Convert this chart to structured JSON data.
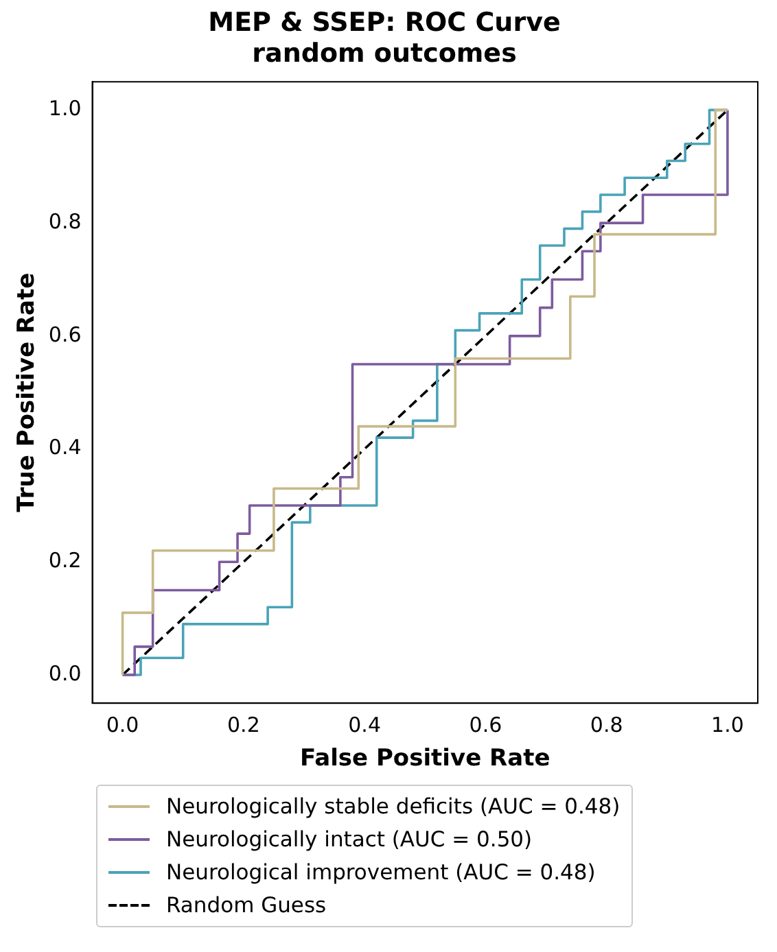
{
  "chart_data": {
    "type": "line",
    "title": [
      "MEP & SSEP: ROC Curve",
      "random outcomes"
    ],
    "xlabel": "False Positive Rate",
    "ylabel": "True Positive Rate",
    "xlim": [
      -0.05,
      1.05
    ],
    "ylim": [
      -0.05,
      1.05
    ],
    "xticks": [
      {
        "value": 0,
        "label": "0.0"
      },
      0.2,
      0.4,
      0.6,
      0.8,
      {
        "value": 1,
        "label": "1.0"
      }
    ],
    "yticks": [
      {
        "value": 0,
        "label": "0.0"
      },
      0.2,
      0.4,
      0.6,
      0.8,
      {
        "value": 1,
        "label": "1.0"
      }
    ],
    "grid": false,
    "legend": "bottom",
    "marker": "none",
    "series": [
      {
        "name": "Neurologically stable deficits (AUC = 0.48)",
        "color": "#c8b98a",
        "line_style": "solid",
        "x": [
          0,
          0,
          0.05,
          0.05,
          0.25,
          0.25,
          0.39,
          0.39,
          0.55,
          0.55,
          0.74,
          0.74,
          0.78,
          0.78,
          0.98,
          0.98,
          1
        ],
        "values": [
          0,
          0.11,
          0.11,
          0.22,
          0.22,
          0.33,
          0.33,
          0.44,
          0.44,
          0.56,
          0.56,
          0.67,
          0.67,
          0.78,
          0.78,
          1,
          1
        ]
      },
      {
        "name": "Neurologically intact (AUC = 0.50)",
        "color": "#7d5b9e",
        "line_style": "solid",
        "x": [
          0,
          0.02,
          0.02,
          0.05,
          0.05,
          0.16,
          0.16,
          0.19,
          0.19,
          0.21,
          0.21,
          0.36,
          0.36,
          0.38,
          0.38,
          0.64,
          0.64,
          0.69,
          0.69,
          0.71,
          0.71,
          0.76,
          0.76,
          0.79,
          0.79,
          0.86,
          0.86,
          1,
          1
        ],
        "values": [
          0,
          0,
          0.05,
          0.05,
          0.15,
          0.15,
          0.2,
          0.2,
          0.25,
          0.25,
          0.3,
          0.3,
          0.35,
          0.35,
          0.55,
          0.55,
          0.6,
          0.6,
          0.65,
          0.65,
          0.7,
          0.7,
          0.75,
          0.75,
          0.8,
          0.8,
          0.85,
          0.85,
          1
        ]
      },
      {
        "name": "Neurological improvement (AUC = 0.48)",
        "color": "#4aa3b8",
        "line_style": "solid",
        "x": [
          0,
          0.03,
          0.03,
          0.1,
          0.1,
          0.24,
          0.24,
          0.28,
          0.28,
          0.31,
          0.31,
          0.42,
          0.42,
          0.48,
          0.48,
          0.52,
          0.52,
          0.55,
          0.55,
          0.59,
          0.59,
          0.66,
          0.66,
          0.69,
          0.69,
          0.73,
          0.73,
          0.76,
          0.76,
          0.79,
          0.79,
          0.83,
          0.83,
          0.9,
          0.9,
          0.93,
          0.93,
          0.97,
          0.97,
          1
        ],
        "values": [
          0,
          0,
          0.03,
          0.03,
          0.09,
          0.09,
          0.12,
          0.12,
          0.27,
          0.27,
          0.3,
          0.3,
          0.42,
          0.42,
          0.45,
          0.45,
          0.55,
          0.55,
          0.61,
          0.61,
          0.64,
          0.64,
          0.7,
          0.7,
          0.76,
          0.76,
          0.79,
          0.79,
          0.82,
          0.82,
          0.85,
          0.85,
          0.88,
          0.88,
          0.91,
          0.91,
          0.94,
          0.94,
          1,
          1
        ]
      },
      {
        "name": "Random Guess",
        "color": "#000000",
        "line_style": "dashed",
        "x": [
          0,
          1
        ],
        "values": [
          0,
          1
        ]
      }
    ]
  }
}
